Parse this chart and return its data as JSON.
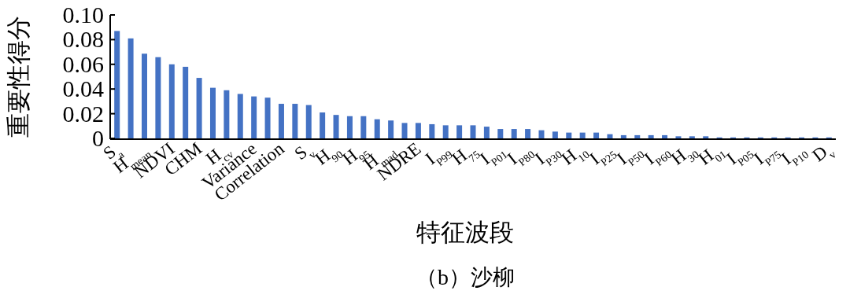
{
  "chart_data": {
    "type": "bar",
    "title": "（b）沙柳",
    "xlabel": "特征波段",
    "ylabel": "重要性得分",
    "color": "#4472c4",
    "categories": [
      "S$_{a}$",
      null,
      "H$_{mean}$",
      null,
      "NDVI",
      null,
      "CHM",
      null,
      "H$_{cv}$",
      null,
      "Variance",
      null,
      "Correlation",
      null,
      "S$_{v}$",
      null,
      "H$_{90}$",
      null,
      "H$_{95}$",
      null,
      "H$_{mad}$",
      null,
      "NDRE",
      null,
      "I$_{P99}$",
      null,
      "H$_{75}$",
      null,
      "I$_{P01}$",
      null,
      "I$_{P80}$",
      null,
      "I$_{P30}$",
      null,
      "H$_{10}$",
      null,
      "I$_{P25}$",
      null,
      "I$_{P50}$",
      null,
      "I$_{P60}$",
      null,
      "H$_{30}$",
      null,
      "H$_{01}$",
      null,
      "I$_{P05}$",
      null,
      "I$_{P75}$",
      null,
      "I$_{P10}$",
      null,
      "D$_{v}$"
    ],
    "values": [
      0.087,
      0.081,
      0.0686,
      0.0658,
      0.06,
      0.058,
      0.049,
      0.041,
      0.039,
      0.036,
      0.034,
      0.033,
      0.028,
      0.028,
      0.027,
      0.021,
      0.019,
      0.018,
      0.018,
      0.0155,
      0.0145,
      0.0125,
      0.0125,
      0.0115,
      0.0106,
      0.0106,
      0.0106,
      0.0095,
      0.0076,
      0.0076,
      0.0076,
      0.0066,
      0.0055,
      0.0047,
      0.0047,
      0.0047,
      0.0034,
      0.0026,
      0.0026,
      0.0026,
      0.0026,
      0.0017,
      0.0017,
      0.0017,
      0.0008,
      0.0008,
      0.0008,
      0.0008,
      0.0008,
      0.0008,
      0.0008,
      0.0008,
      0.0008
    ],
    "ylim": [
      0,
      0.1
    ],
    "yticks": [
      0,
      0.02,
      0.04,
      0.06,
      0.08,
      {
        "value": 0.1,
        "label": "0.10"
      }
    ]
  }
}
